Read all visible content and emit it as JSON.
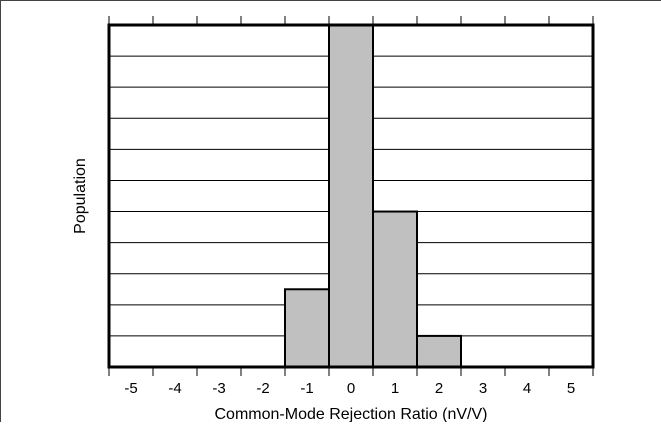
{
  "chart_data": {
    "type": "bar",
    "title": "",
    "xlabel": "Common-Mode Rejection Ratio (nV/V)",
    "ylabel": "Population",
    "categories": [
      "-5",
      "-4",
      "-3",
      "-2",
      "-1",
      "0",
      "1",
      "2",
      "3",
      "4",
      "5"
    ],
    "values": [
      0,
      0,
      0,
      0,
      2.5,
      11,
      5,
      1,
      0,
      0,
      0
    ],
    "ylim": [
      0,
      11
    ],
    "y_ticks_labeled": false,
    "grid": "horizontal",
    "grid_lines": 11,
    "legend": "none",
    "bar_color": "#c0c0c0",
    "bar_edge_color": "#000000"
  }
}
